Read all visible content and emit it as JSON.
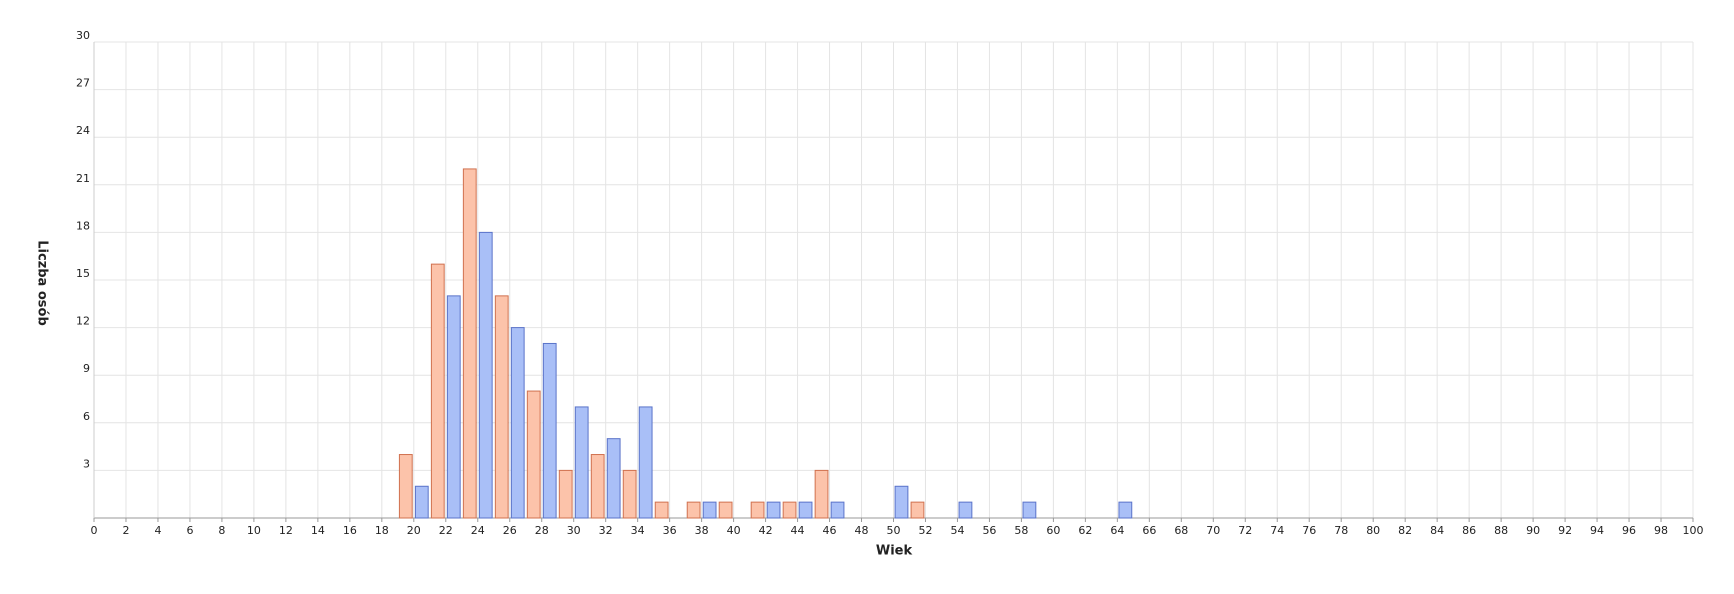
{
  "chart_data": {
    "type": "bar",
    "x_label": "Wiek",
    "y_label": "Liczba osób",
    "series": [
      {
        "color": "#fcc3aa",
        "stroke": "#d0714f",
        "x": [
          19,
          21,
          23,
          25,
          27,
          29,
          31,
          33,
          35,
          37,
          39,
          41,
          43,
          45,
          51
        ],
        "values": [
          4,
          16,
          22,
          14,
          8,
          3,
          4,
          3,
          1,
          1,
          1,
          1,
          1,
          3,
          1
        ]
      },
      {
        "color": "#a9bff7",
        "stroke": "#5a73c9",
        "x": [
          20,
          22,
          24,
          26,
          28,
          30,
          32,
          34,
          38,
          42,
          44,
          46,
          50,
          54,
          58,
          64
        ],
        "values": [
          2,
          14,
          18,
          12,
          11,
          7,
          5,
          7,
          1,
          1,
          1,
          1,
          2,
          1,
          1,
          1
        ]
      }
    ],
    "xlim": [
      0,
      100
    ],
    "xticks": [
      0,
      2,
      4,
      6,
      8,
      10,
      12,
      14,
      16,
      18,
      20,
      22,
      24,
      26,
      28,
      30,
      32,
      34,
      36,
      38,
      40,
      42,
      44,
      46,
      48,
      50,
      52,
      54,
      56,
      58,
      60,
      62,
      64,
      66,
      68,
      70,
      72,
      74,
      76,
      78,
      80,
      82,
      84,
      86,
      88,
      90,
      92,
      94,
      96,
      98,
      100
    ],
    "ylim": [
      0,
      30
    ],
    "yticks": [
      3,
      6,
      9,
      12,
      15,
      18,
      21,
      24,
      27,
      30
    ],
    "grid": true
  }
}
